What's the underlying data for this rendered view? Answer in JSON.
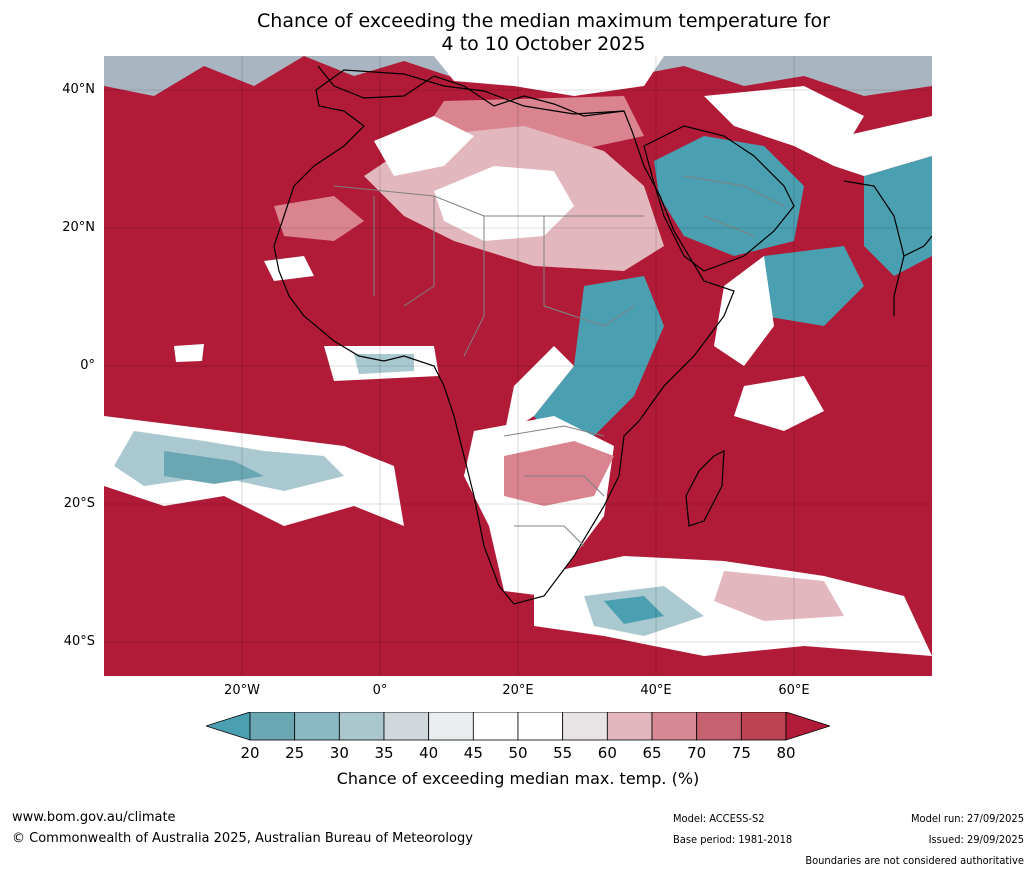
{
  "title_line1": "Chance of exceeding the median maximum temperature for",
  "title_line2": "4 to 10 October 2025",
  "map": {
    "lat_labels": [
      "40°N",
      "20°N",
      "0°",
      "20°S",
      "40°S"
    ],
    "lon_labels": [
      "20°W",
      "0°",
      "20°E",
      "40°E",
      "60°E"
    ],
    "colors": {
      "hot": "#b11b37",
      "warm": "#c84a5d",
      "mild_warm": "#d9848f",
      "neutral": "#ffffff",
      "cool": "#4a9fb1",
      "mild_cool": "#a9c8d0",
      "coast": "#000000",
      "boundary": "#808080"
    }
  },
  "colorbar": {
    "ticks": [
      "20",
      "25",
      "30",
      "35",
      "40",
      "45",
      "50",
      "55",
      "60",
      "65",
      "70",
      "75",
      "80"
    ],
    "colors": [
      "#4a9fb1",
      "#6aa7b3",
      "#8ab8c4",
      "#aac7cd",
      "#d0d8db",
      "#eaeef0",
      "#ffffff",
      "#ffffff",
      "#e8e3e5",
      "#e3b7be",
      "#d68a94",
      "#c6616f",
      "#bd4352",
      "#b11b37"
    ],
    "label": "Chance of exceeding median max. temp. (%)"
  },
  "footer": {
    "url": "www.bom.gov.au/climate",
    "copyright": "© Commonwealth of Australia 2025, Australian Bureau of Meteorology",
    "model": "Model: ACCESS-S2",
    "base_period": "Base period: 1981-2018",
    "model_run": "Model run: 27/09/2025",
    "issued": "Issued: 29/09/2025",
    "disclaimer": "Boundaries are not considered authoritative"
  }
}
